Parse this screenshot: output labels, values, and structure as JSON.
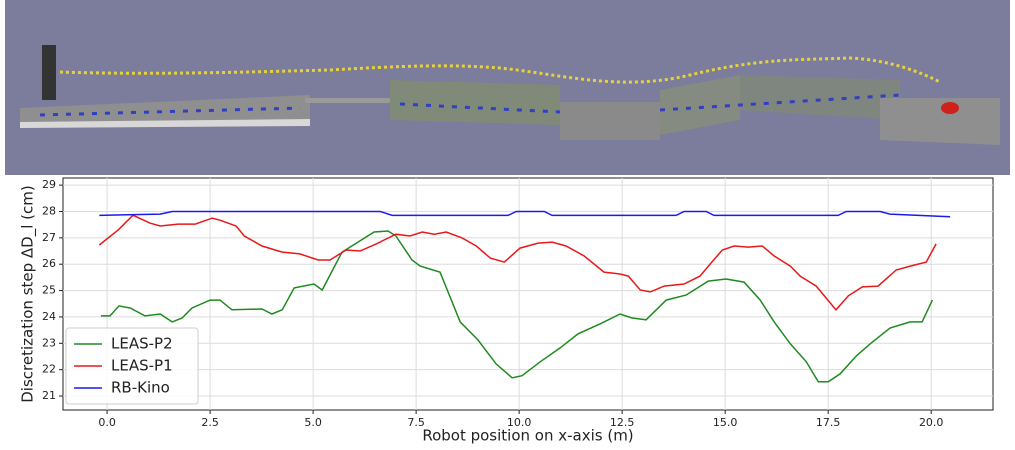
{
  "chart_data": {
    "type": "line",
    "xlabel": "Robot position on x-axis (m)",
    "ylabel": "Discretization step ΔD_l (cm)",
    "xlim": [
      -1.07,
      21.5
    ],
    "ylim": [
      20.47,
      29.27
    ],
    "xticks": [
      {
        "value": 0,
        "label": "0.0"
      },
      2.5,
      {
        "value": 5,
        "label": "5.0"
      },
      7.5,
      {
        "value": 10,
        "label": "10.0"
      },
      12.5,
      {
        "value": 15,
        "label": "15.0"
      },
      17.5,
      {
        "value": 20,
        "label": "20.0"
      }
    ],
    "yticks": [
      21,
      22,
      23,
      24,
      25,
      26,
      27,
      28,
      29
    ],
    "grid": true,
    "legend": "lower left",
    "series": [
      {
        "name": "LEAS-P2",
        "color": "#1f8a1f",
        "x": [
          -0.15,
          0.07,
          0.29,
          0.56,
          0.92,
          1.29,
          1.58,
          1.82,
          2.06,
          2.5,
          2.74,
          3.03,
          3.76,
          4.0,
          4.25,
          4.54,
          5.02,
          5.22,
          5.7,
          6.09,
          6.48,
          6.82,
          7.01,
          7.4,
          7.6,
          8.08,
          8.57,
          9.0,
          9.44,
          9.83,
          10.07,
          10.51,
          11.0,
          11.43,
          11.97,
          12.45,
          12.74,
          13.08,
          13.57,
          14.05,
          14.59,
          15.02,
          15.46,
          15.85,
          16.19,
          16.58,
          16.97,
          17.26,
          17.5,
          17.79,
          18.18,
          18.52,
          19.0,
          19.49,
          19.78,
          20.03
        ],
        "values": [
          24.04,
          24.04,
          24.42,
          24.34,
          24.04,
          24.11,
          23.81,
          23.96,
          24.34,
          24.64,
          24.64,
          24.27,
          24.3,
          24.11,
          24.27,
          25.1,
          25.25,
          25.02,
          26.46,
          26.84,
          27.22,
          27.26,
          27.07,
          26.16,
          25.93,
          25.7,
          23.81,
          23.13,
          22.22,
          21.69,
          21.77,
          22.3,
          22.83,
          23.36,
          23.74,
          24.11,
          23.96,
          23.89,
          24.64,
          24.83,
          25.36,
          25.44,
          25.32,
          24.64,
          23.81,
          22.98,
          22.3,
          21.54,
          21.54,
          21.84,
          22.52,
          22.98,
          23.58,
          23.81,
          23.81,
          24.64
        ]
      },
      {
        "name": "LEAS-P1",
        "color": "#e8191b",
        "x": [
          -0.19,
          0.27,
          0.63,
          1.04,
          1.29,
          1.72,
          2.14,
          2.55,
          2.74,
          3.13,
          3.33,
          3.76,
          4.25,
          4.68,
          5.12,
          5.41,
          5.8,
          6.14,
          6.53,
          7.01,
          7.35,
          7.65,
          7.94,
          8.23,
          8.62,
          8.96,
          9.3,
          9.64,
          10.02,
          10.46,
          10.8,
          11.14,
          11.58,
          12.06,
          12.45,
          12.65,
          12.94,
          13.18,
          13.52,
          14.0,
          14.39,
          14.64,
          14.93,
          15.22,
          15.56,
          15.9,
          16.19,
          16.58,
          16.82,
          17.21,
          17.45,
          17.69,
          17.99,
          18.33,
          18.71,
          19.15,
          19.49,
          19.88,
          20.12
        ],
        "values": [
          26.73,
          27.3,
          27.86,
          27.56,
          27.45,
          27.52,
          27.52,
          27.75,
          27.67,
          27.45,
          27.07,
          26.69,
          26.46,
          26.39,
          26.16,
          26.16,
          26.54,
          26.5,
          26.77,
          27.14,
          27.07,
          27.22,
          27.14,
          27.22,
          26.99,
          26.69,
          26.23,
          26.08,
          26.61,
          26.8,
          26.84,
          26.69,
          26.31,
          25.7,
          25.63,
          25.55,
          25.02,
          24.95,
          25.17,
          25.25,
          25.55,
          26.01,
          26.54,
          26.69,
          26.65,
          26.69,
          26.31,
          25.93,
          25.55,
          25.17,
          24.72,
          24.27,
          24.8,
          25.14,
          25.17,
          25.78,
          25.93,
          26.08,
          26.77
        ]
      },
      {
        "name": "RB-Kino",
        "color": "#1a1aef",
        "x": [
          -0.19,
          1.29,
          1.58,
          6.63,
          6.92,
          9.73,
          9.93,
          10.61,
          10.8,
          13.81,
          14.0,
          14.54,
          14.73,
          17.74,
          17.94,
          18.76,
          19.0,
          20.46
        ],
        "values": [
          27.85,
          27.9,
          28.0,
          28.0,
          27.85,
          27.85,
          28.0,
          28.0,
          27.85,
          27.85,
          28.0,
          28.0,
          27.85,
          27.85,
          28.0,
          28.0,
          27.9,
          27.8
        ]
      }
    ]
  }
}
